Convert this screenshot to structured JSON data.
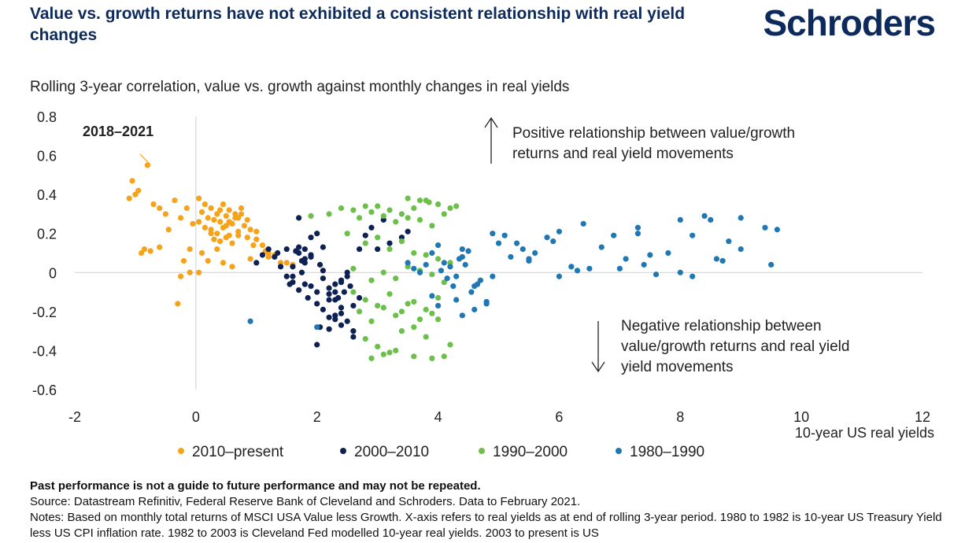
{
  "header": {
    "title": "Value vs. growth returns have not exhibited a consistent relationship with real yield changes",
    "brand": "Schroders"
  },
  "footer": {
    "disclaimer": "Past performance is not a guide to future performance and may not be repeated.",
    "source": "Source: Datastream Refinitiv, Federal Reserve Bank of Cleveland and Schroders. Data to February 2021.",
    "notes": "Notes: Based on monthly total returns of MSCI USA Value less Growth. X-axis refers to real yields as at end of rolling 3-year period. 1980 to 1982 is 10-year US Treasury Yield less US CPI inflation rate. 1982 to 2003 is Cleveland Fed modelled 10-year real yields. 2003 to present is US"
  },
  "colors": {
    "title": "#0d2a5c",
    "orange": "#f5a31a",
    "navy": "#0d2152",
    "green": "#6cc04a",
    "blue": "#1f77b4"
  },
  "chart_data": {
    "type": "scatter",
    "title": "Rolling 3-year correlation, value vs. growth against monthly changes in real yields",
    "xlabel": "10-year US real yields",
    "ylabel": "",
    "xlim": [
      -2,
      12
    ],
    "ylim": [
      -0.6,
      0.8
    ],
    "xticks": [
      "-2",
      "0",
      "2",
      "4",
      "6",
      "8",
      "10",
      "12"
    ],
    "yticks": [
      "0.8",
      "0.6",
      "0.4",
      "0.2",
      "0",
      "-0.2",
      "-0.4",
      "-0.6"
    ],
    "grid": false,
    "legend_position": "bottom",
    "annotations": {
      "callout": "2018–2021",
      "positive": [
        "Positive relationship between value/growth",
        "returns and real yield movements"
      ],
      "negative": [
        "Negative relationship between",
        "value/growth returns and real yield",
        "yield movements"
      ]
    },
    "series": [
      {
        "name": "2010–present",
        "color": "#f5a31a",
        "x": [
          -0.8,
          -1.05,
          -1.1,
          -0.95,
          -1.0,
          -0.7,
          -0.6,
          -0.5,
          -0.35,
          -0.15,
          0.05,
          0.15,
          0.25,
          0.35,
          0.45,
          0.55,
          0.65,
          0.75,
          0.85,
          0.2,
          0.3,
          0.4,
          0.5,
          0.6,
          0.7,
          0.8,
          0.9,
          1.0,
          0.25,
          0.35,
          0.45,
          0.55,
          0.3,
          0.4,
          0.5,
          0.6,
          0.7,
          0.85,
          1.0,
          1.1,
          1.2,
          1.3,
          1.5,
          1.6,
          0.1,
          -0.1,
          -0.2,
          0.2,
          0.45,
          -0.1,
          -0.25,
          0.35,
          0.6,
          1.2,
          1.4,
          0.9,
          -0.3,
          -0.85,
          -0.75,
          -0.6,
          -0.9,
          -0.45,
          -0.25,
          -0.05,
          0.1,
          0.3,
          0.5,
          0.7,
          0.95,
          1.15,
          0.05,
          0.15,
          0.25,
          0.4,
          0.55,
          0.65,
          0.75,
          0.05
        ],
        "y": [
          0.55,
          0.47,
          0.38,
          0.42,
          0.4,
          0.35,
          0.33,
          0.3,
          0.37,
          0.33,
          0.38,
          0.35,
          0.33,
          0.3,
          0.35,
          0.32,
          0.28,
          0.3,
          0.27,
          0.28,
          0.27,
          0.26,
          0.29,
          0.25,
          0.28,
          0.24,
          0.22,
          0.21,
          0.22,
          0.2,
          0.23,
          0.19,
          0.17,
          0.16,
          0.18,
          0.15,
          0.19,
          0.18,
          0.17,
          0.14,
          0.1,
          0.09,
          0.05,
          0.04,
          0.1,
          0.12,
          0.06,
          0.06,
          0.05,
          0.0,
          -0.02,
          0.12,
          0.03,
          0.08,
          0.05,
          0.07,
          -0.16,
          0.12,
          0.11,
          0.13,
          0.1,
          0.22,
          0.28,
          0.25,
          0.31,
          0.27,
          0.24,
          0.21,
          0.14,
          0.11,
          0.26,
          0.23,
          0.2,
          0.32,
          0.26,
          0.3,
          0.33,
          0.0
        ]
      },
      {
        "name": "2000–2010",
        "color": "#0d2152",
        "x": [
          1.0,
          1.1,
          1.2,
          1.3,
          1.35,
          1.4,
          1.5,
          1.6,
          1.7,
          1.75,
          1.8,
          1.9,
          2.0,
          1.5,
          1.55,
          1.6,
          1.65,
          1.7,
          1.75,
          1.8,
          1.85,
          1.9,
          2.05,
          2.1,
          2.2,
          2.3,
          2.4,
          2.5,
          2.0,
          2.1,
          2.2,
          2.3,
          2.35,
          2.4,
          2.45,
          2.5,
          2.6,
          2.7,
          1.7,
          1.8,
          1.9,
          2.0,
          2.1,
          2.2,
          2.3,
          2.2,
          2.3,
          2.4,
          2.5,
          2.6,
          1.7,
          2.0,
          2.4,
          2.6,
          2.7,
          2.8,
          2.9,
          3.0,
          3.1,
          3.2,
          3.4,
          3.5,
          2.05,
          2.2,
          2.4,
          2.55,
          1.9,
          2.1,
          2.3,
          1.6,
          1.8
        ],
        "y": [
          0.05,
          0.09,
          0.12,
          0.08,
          0.1,
          0.03,
          -0.02,
          -0.05,
          0.1,
          0.06,
          0.12,
          0.18,
          0.2,
          0.12,
          -0.06,
          0.03,
          0.11,
          -0.09,
          0.0,
          0.05,
          -0.13,
          0.09,
          0.04,
          -0.03,
          -0.08,
          -0.14,
          -0.05,
          0.0,
          -0.16,
          -0.19,
          -0.11,
          -0.22,
          -0.13,
          -0.21,
          -0.1,
          -0.02,
          -0.17,
          -0.13,
          0.13,
          0.07,
          -0.07,
          -0.1,
          0.01,
          -0.14,
          -0.06,
          -0.29,
          -0.24,
          -0.18,
          -0.25,
          -0.3,
          0.28,
          -0.37,
          -0.27,
          -0.33,
          0.12,
          0.19,
          0.23,
          0.12,
          0.27,
          0.15,
          0.18,
          0.21,
          -0.28,
          -0.23,
          -0.04,
          -0.07,
          0.08,
          0.13,
          -0.1,
          -0.02,
          -0.06
        ]
      },
      {
        "name": "1990–2000",
        "color": "#6cc04a",
        "x": [
          1.9,
          2.2,
          2.4,
          2.6,
          2.8,
          3.0,
          3.2,
          3.4,
          3.6,
          3.8,
          4.0,
          4.2,
          4.3,
          2.7,
          2.9,
          3.1,
          3.3,
          3.5,
          3.7,
          3.9,
          4.1,
          2.5,
          2.8,
          3.0,
          3.2,
          3.4,
          3.6,
          3.8,
          4.0,
          4.2,
          2.6,
          2.9,
          3.1,
          3.3,
          3.5,
          3.7,
          3.9,
          4.1,
          2.6,
          2.8,
          3.0,
          3.2,
          3.4,
          3.6,
          3.8,
          4.0,
          2.7,
          2.9,
          3.1,
          3.3,
          3.5,
          3.7,
          3.9,
          2.8,
          3.0,
          3.2,
          3.4,
          3.6,
          3.8,
          4.0,
          4.2,
          2.9,
          3.1,
          3.3,
          3.6,
          3.9,
          4.1,
          3.5,
          3.7,
          3.85
        ],
        "y": [
          0.29,
          0.3,
          0.33,
          0.32,
          0.34,
          0.34,
          0.32,
          0.3,
          0.33,
          0.37,
          0.35,
          0.33,
          0.34,
          0.28,
          0.31,
          0.29,
          0.26,
          0.28,
          0.27,
          0.24,
          0.3,
          0.2,
          0.15,
          0.18,
          0.12,
          0.16,
          0.1,
          0.09,
          0.07,
          0.05,
          0.02,
          -0.04,
          0.0,
          -0.03,
          0.03,
          0.01,
          -0.01,
          -0.05,
          -0.1,
          -0.14,
          -0.17,
          -0.11,
          -0.2,
          -0.15,
          -0.19,
          -0.13,
          -0.2,
          -0.25,
          -0.18,
          -0.22,
          -0.16,
          -0.24,
          -0.21,
          -0.34,
          -0.38,
          -0.41,
          -0.3,
          -0.28,
          -0.33,
          -0.24,
          -0.37,
          -0.44,
          -0.42,
          -0.4,
          -0.43,
          -0.44,
          -0.43,
          0.38,
          0.37,
          0.36
        ]
      },
      {
        "name": "1980–1990",
        "color": "#1f77b4",
        "x": [
          0.9,
          2.0,
          4.0,
          4.1,
          4.2,
          4.3,
          4.4,
          4.5,
          4.6,
          4.7,
          4.8,
          4.9,
          3.8,
          3.9,
          4.05,
          4.15,
          4.25,
          4.35,
          4.45,
          4.55,
          4.65,
          3.6,
          3.7,
          3.5,
          3.9,
          4.0,
          4.3,
          4.4,
          4.6,
          4.8,
          5.0,
          5.2,
          5.4,
          5.6,
          5.8,
          6.0,
          6.2,
          6.4,
          6.5,
          6.7,
          6.9,
          7.1,
          7.3,
          7.4,
          7.6,
          7.8,
          8.0,
          8.2,
          8.4,
          8.6,
          8.8,
          9.0,
          9.4,
          9.6,
          5.1,
          5.3,
          5.5,
          5.9,
          6.3,
          7.0,
          7.3,
          8.0,
          8.5,
          8.7,
          9.5,
          9.0,
          8.2,
          7.5,
          6.0,
          5.5,
          4.9,
          4.4
        ],
        "y": [
          -0.25,
          -0.28,
          0.14,
          0.05,
          0.03,
          -0.02,
          0.08,
          0.11,
          -0.07,
          -0.04,
          -0.15,
          -0.02,
          0.04,
          0.1,
          0.01,
          -0.03,
          -0.07,
          0.07,
          0.04,
          -0.1,
          -0.06,
          0.02,
          0.0,
          0.05,
          -0.12,
          -0.17,
          -0.14,
          -0.22,
          -0.19,
          -0.16,
          0.15,
          0.08,
          0.12,
          0.1,
          0.18,
          0.21,
          0.03,
          0.25,
          0.02,
          0.13,
          0.19,
          0.07,
          0.23,
          0.04,
          -0.01,
          0.1,
          0.27,
          -0.02,
          0.29,
          0.07,
          0.16,
          0.28,
          0.23,
          0.22,
          0.19,
          0.15,
          0.06,
          0.16,
          0.01,
          0.02,
          0.2,
          0.0,
          0.27,
          0.06,
          0.04,
          0.12,
          0.19,
          0.09,
          -0.02,
          0.07,
          0.2,
          0.12
        ]
      }
    ]
  }
}
